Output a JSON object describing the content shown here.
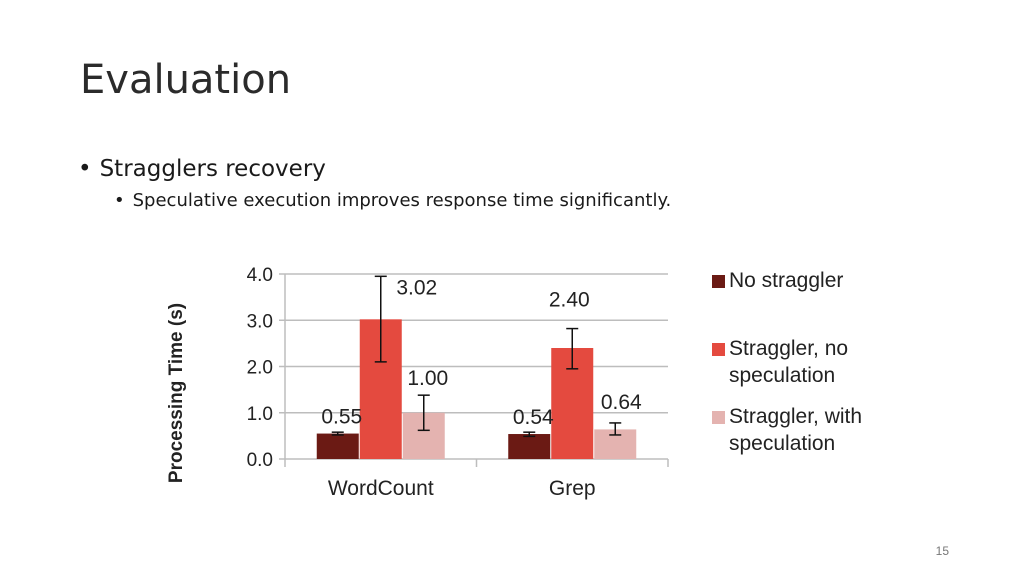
{
  "slide": {
    "title": "Evaluation",
    "bullets": [
      {
        "text": "Stragglers recovery",
        "sub": [
          "Speculative execution improves response time significantly."
        ]
      }
    ],
    "page_number": "15"
  },
  "colors": {
    "no_straggler": "#6b1a14",
    "straggler_no_spec": "#e44a3f",
    "straggler_with_spec": "#e4b3b0",
    "grid": "#bdbdbd",
    "axis_text": "#222222"
  },
  "chart_data": {
    "type": "bar",
    "ylabel": "Processing Time (s)",
    "xlabel": "",
    "ylim": [
      0,
      4
    ],
    "yticks": [
      "0.0",
      "1.0",
      "2.0",
      "3.0",
      "4.0"
    ],
    "categories": [
      "WordCount",
      "Grep"
    ],
    "grid": true,
    "legend_position": "right",
    "series": [
      {
        "name": "No straggler",
        "values": [
          0.55,
          0.54
        ],
        "labels": [
          "0.55",
          "0.54"
        ],
        "err_low": [
          0.52,
          0.49
        ],
        "err_high": [
          0.58,
          0.58
        ]
      },
      {
        "name": "Straggler, no speculation",
        "values": [
          3.02,
          2.4
        ],
        "labels": [
          "3.02",
          "2.40"
        ],
        "err_low": [
          2.1,
          1.95
        ],
        "err_high": [
          3.95,
          2.82
        ]
      },
      {
        "name": "Straggler, with speculation",
        "values": [
          1.0,
          0.64
        ],
        "labels": [
          "1.00",
          "0.64"
        ],
        "err_low": [
          0.62,
          0.52
        ],
        "err_high": [
          1.38,
          0.78
        ]
      }
    ]
  }
}
